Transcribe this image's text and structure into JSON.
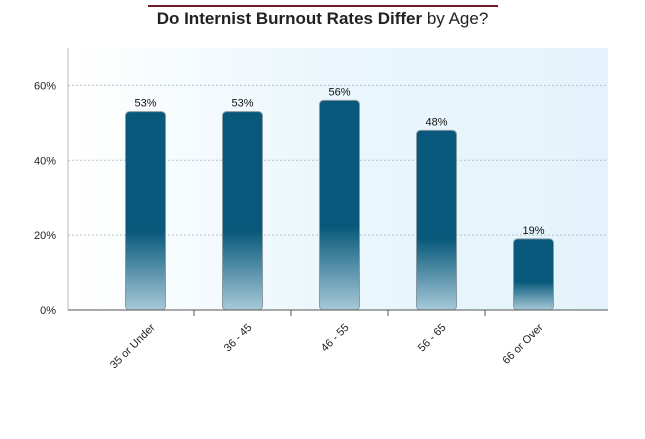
{
  "chart_data": {
    "type": "bar",
    "title_bold": "Do Internist Burnout Rates Differ",
    "title_normal": "by Age?",
    "categories": [
      "35 or Under",
      "36 - 45",
      "46 - 55",
      "56 - 65",
      "66 or Over"
    ],
    "values": [
      53,
      53,
      56,
      48,
      19
    ],
    "data_labels": [
      "53%",
      "53%",
      "56%",
      "48%",
      "19%"
    ],
    "yticks": [
      0,
      20,
      40,
      60
    ],
    "ytick_labels": [
      "0%",
      "20%",
      "40%",
      "60%"
    ],
    "ylim": [
      0,
      70
    ],
    "grid": true,
    "xlabel": "",
    "ylabel": "",
    "colors": {
      "bar": "#07587a",
      "bar_light": "#9ec3d3",
      "bar_edge": "#8a9aa3",
      "plot_bg": "#eaf6fc",
      "grid": "#b5c3c9",
      "title_rule": "#6b1a2a"
    }
  }
}
